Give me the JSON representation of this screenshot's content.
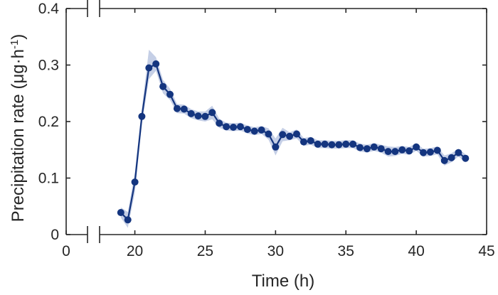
{
  "chart_data": {
    "type": "line",
    "xlabel": "Time (h)",
    "ylabel": "Precipitation rate (μg·h",
    "ylabel_superscript": "-1",
    "ylabel_close": ")",
    "xlim": [
      0,
      45
    ],
    "ylim": [
      0,
      0.4
    ],
    "x_break": [
      3,
      5
    ],
    "xticks": [
      0,
      20,
      25,
      30,
      35,
      40,
      45
    ],
    "yticks": [
      0,
      0.1,
      0.2,
      0.3,
      0.4
    ],
    "xtick_labels": [
      "0",
      "20",
      "25",
      "30",
      "35",
      "40",
      "45"
    ],
    "ytick_labels": [
      "0",
      "0.1",
      "0.2",
      "0.3",
      "0.4"
    ],
    "grid": false,
    "colors": {
      "line": "#14357f",
      "band": "#c5cfe6",
      "axis": "#262626"
    },
    "series": [
      {
        "x": [
          19,
          19.5,
          20,
          20.5,
          21,
          21.5,
          22,
          22.5,
          23,
          23.5,
          24,
          24.5,
          25,
          25.5,
          26,
          26.5,
          27,
          27.5,
          28,
          28.5,
          29,
          29.5,
          30,
          30.5,
          31,
          31.5,
          32,
          32.5,
          33,
          33.5,
          34,
          34.5,
          35,
          35.5,
          36,
          36.5,
          37,
          37.5,
          38,
          38.5,
          39,
          39.5,
          40,
          40.5,
          41,
          41.5,
          42,
          42.5,
          43,
          43.5
        ],
        "y": [
          0.039,
          0.026,
          0.093,
          0.209,
          0.295,
          0.302,
          0.262,
          0.248,
          0.223,
          0.222,
          0.214,
          0.21,
          0.209,
          0.216,
          0.197,
          0.191,
          0.19,
          0.191,
          0.186,
          0.183,
          0.185,
          0.178,
          0.155,
          0.177,
          0.174,
          0.178,
          0.164,
          0.166,
          0.16,
          0.16,
          0.159,
          0.159,
          0.16,
          0.16,
          0.154,
          0.152,
          0.155,
          0.152,
          0.147,
          0.147,
          0.15,
          0.148,
          0.155,
          0.145,
          0.146,
          0.149,
          0.131,
          0.136,
          0.145,
          0.135
        ],
        "lower": [
          0.03,
          0.012,
          0.075,
          0.195,
          0.275,
          0.29,
          0.25,
          0.238,
          0.215,
          0.214,
          0.206,
          0.202,
          0.2,
          0.204,
          0.189,
          0.184,
          0.183,
          0.184,
          0.179,
          0.176,
          0.178,
          0.168,
          0.14,
          0.165,
          0.167,
          0.17,
          0.157,
          0.159,
          0.153,
          0.153,
          0.152,
          0.152,
          0.153,
          0.153,
          0.147,
          0.145,
          0.148,
          0.145,
          0.138,
          0.139,
          0.143,
          0.141,
          0.148,
          0.138,
          0.139,
          0.142,
          0.122,
          0.128,
          0.138,
          0.128
        ],
        "upper": [
          0.048,
          0.04,
          0.11,
          0.223,
          0.327,
          0.314,
          0.274,
          0.258,
          0.231,
          0.23,
          0.222,
          0.218,
          0.218,
          0.228,
          0.205,
          0.198,
          0.197,
          0.198,
          0.193,
          0.19,
          0.192,
          0.188,
          0.17,
          0.189,
          0.181,
          0.186,
          0.171,
          0.173,
          0.167,
          0.167,
          0.166,
          0.166,
          0.167,
          0.167,
          0.161,
          0.159,
          0.162,
          0.159,
          0.156,
          0.155,
          0.157,
          0.155,
          0.162,
          0.152,
          0.153,
          0.156,
          0.14,
          0.144,
          0.152,
          0.142
        ]
      }
    ]
  }
}
